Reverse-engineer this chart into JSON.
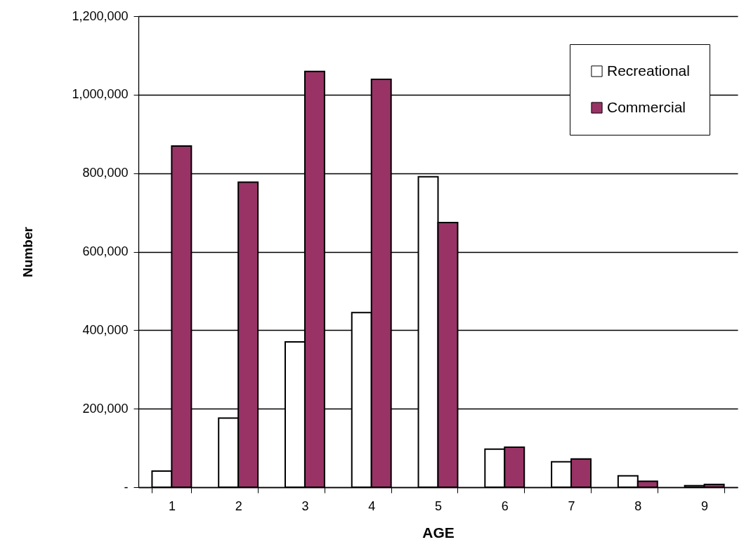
{
  "chart_data": {
    "type": "bar",
    "xlabel": "AGE",
    "ylabel": "Number",
    "categories": [
      "1",
      "2",
      "3",
      "4",
      "5",
      "6",
      "7",
      "8",
      "9"
    ],
    "series": [
      {
        "name": "Recreational",
        "color": "#ffffff",
        "values": [
          41000,
          176000,
          370000,
          445000,
          791000,
          97000,
          65000,
          29000,
          4000
        ]
      },
      {
        "name": "Commercial",
        "color": "#993366",
        "values": [
          869000,
          777000,
          1059000,
          1039000,
          674000,
          102000,
          72000,
          15000,
          7000
        ]
      }
    ],
    "ylim": [
      0,
      1200000
    ],
    "yticks": [
      {
        "value": 0,
        "label": "-"
      },
      {
        "value": 200000,
        "label": "200,000"
      },
      {
        "value": 400000,
        "label": "400,000"
      },
      {
        "value": 600000,
        "label": "600,000"
      },
      {
        "value": 800000,
        "label": "800,000"
      },
      {
        "value": 1000000,
        "label": "1,000,000"
      },
      {
        "value": 1200000,
        "label": "1,200,000"
      }
    ],
    "grid": "y",
    "legend": "top right"
  }
}
